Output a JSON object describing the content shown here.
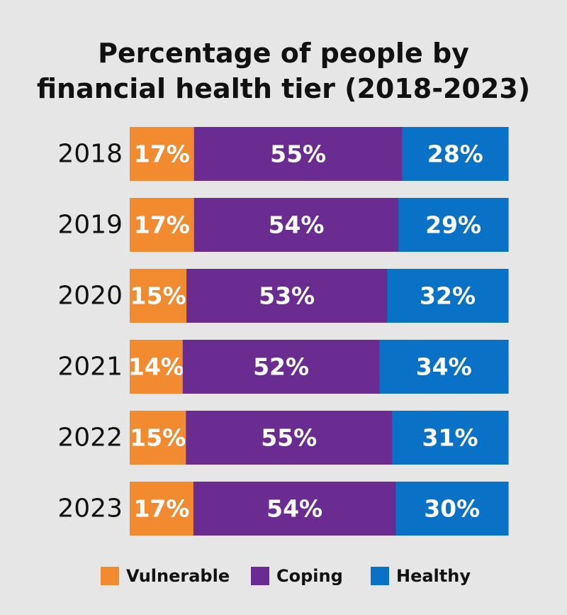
{
  "chart_data": {
    "type": "bar",
    "orientation": "horizontal",
    "stacked": true,
    "title": "Percentage of people by financial health tier (2018-2023)",
    "title_lines": [
      "Percentage of people by",
      "financial health tier (2018-2023)"
    ],
    "categories": [
      "2018",
      "2019",
      "2020",
      "2021",
      "2022",
      "2023"
    ],
    "series": [
      {
        "name": "Vulnerable",
        "color": "#f28a30",
        "values": [
          17,
          17,
          15,
          14,
          15,
          17
        ],
        "labels": [
          "17%",
          "17%",
          "15%",
          "14%",
          "15%",
          "17%"
        ]
      },
      {
        "name": "Coping",
        "color": "#6a2c91",
        "values": [
          55,
          54,
          53,
          52,
          55,
          54
        ],
        "labels": [
          "55%",
          "54%",
          "53%",
          "52%",
          "55%",
          "54%"
        ]
      },
      {
        "name": "Healthy",
        "color": "#0a72c6",
        "values": [
          28,
          29,
          32,
          34,
          31,
          30
        ],
        "labels": [
          "28%",
          "29%",
          "32%",
          "34%",
          "31%",
          "30%"
        ]
      }
    ],
    "unit": "%",
    "legend_position": "bottom",
    "grid": false
  }
}
